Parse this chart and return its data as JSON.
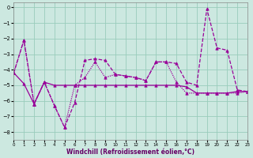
{
  "xlabel": "Windchill (Refroidissement éolien,°C)",
  "xlim": [
    0,
    23
  ],
  "ylim": [
    -8.5,
    0.3
  ],
  "yticks": [
    0,
    -1,
    -2,
    -3,
    -4,
    -5,
    -6,
    -7,
    -8
  ],
  "xticks": [
    0,
    1,
    2,
    3,
    4,
    5,
    6,
    7,
    8,
    9,
    10,
    11,
    12,
    13,
    14,
    15,
    16,
    17,
    18,
    19,
    20,
    21,
    22,
    23
  ],
  "background_color": "#cce8e0",
  "grid_color": "#99ccbb",
  "line_color": "#990099",
  "line1_y": [
    -4.2,
    -2.1,
    -6.2,
    -4.8,
    -6.3,
    -7.7,
    -6.1,
    -3.4,
    -3.3,
    -3.4,
    -4.3,
    -4.4,
    -4.5,
    -4.7,
    -3.5,
    -3.5,
    -3.6,
    -4.8,
    -5.0,
    -0.1,
    -2.6,
    -2.75,
    -5.3,
    -5.4
  ],
  "line2_y": [
    -4.2,
    -2.1,
    -6.2,
    -4.8,
    -6.3,
    -7.7,
    -5.0,
    -4.5,
    -3.5,
    -4.5,
    -4.3,
    -4.4,
    -4.5,
    -4.7,
    -3.5,
    -3.5,
    -4.8,
    -5.5,
    -5.5,
    -5.5,
    -5.5,
    -5.5,
    -5.5,
    -5.4
  ],
  "line3_y": [
    -4.2,
    -4.9,
    -6.2,
    -4.8,
    -5.0,
    -5.0,
    -5.0,
    -5.0,
    -5.0,
    -5.0,
    -5.0,
    -5.0,
    -5.0,
    -5.0,
    -5.0,
    -5.0,
    -5.0,
    -5.1,
    -5.5,
    -5.5,
    -5.5,
    -5.5,
    -5.4,
    -5.4
  ]
}
